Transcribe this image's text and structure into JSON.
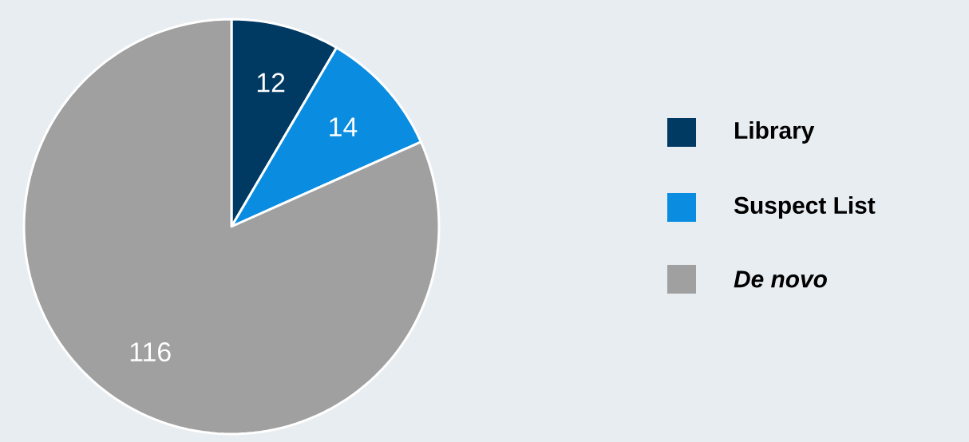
{
  "chart_data": {
    "type": "pie",
    "categories": [
      "Library",
      "Suspect List",
      "*De novo*"
    ],
    "values": [
      12,
      14,
      116
    ],
    "colors": [
      "#003a63",
      "#0a8de0",
      "#a0a0a0"
    ],
    "data_labels": true,
    "legend": "right"
  }
}
